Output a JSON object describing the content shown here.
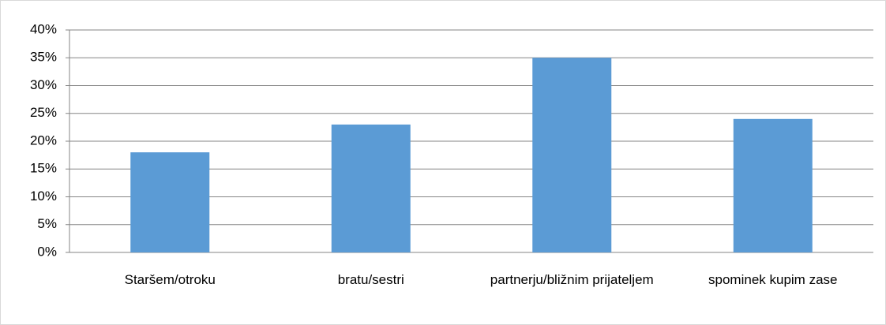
{
  "chart_data": {
    "type": "bar",
    "categories": [
      "Staršem/otroku",
      "bratu/sestri",
      "partnerju/bližnim prijateljem",
      "spominek kupim zase"
    ],
    "values": [
      18,
      23,
      35,
      24
    ],
    "color": "#5b9bd5",
    "ylim": [
      0,
      40
    ],
    "yticks": [
      {
        "value": 0,
        "label": "0%"
      },
      {
        "value": 5,
        "label": "5%"
      },
      {
        "value": 10,
        "label": "10%"
      },
      {
        "value": 15,
        "label": "15%"
      },
      {
        "value": 20,
        "label": "20%"
      },
      {
        "value": 25,
        "label": "25%"
      },
      {
        "value": 30,
        "label": "30%"
      },
      {
        "value": 35,
        "label": "35%"
      },
      {
        "value": 40,
        "label": "40%"
      }
    ],
    "grid": true
  }
}
